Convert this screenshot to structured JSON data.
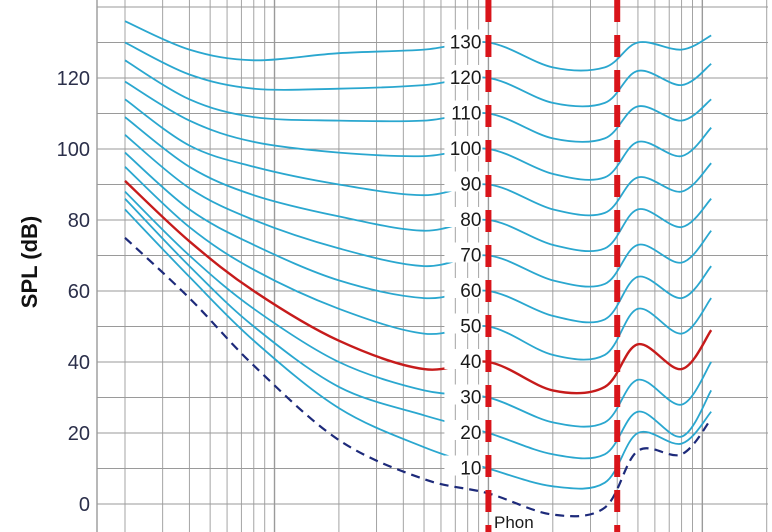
{
  "chart_data": {
    "type": "line",
    "title": "",
    "xlabel": "",
    "ylabel": "SPL (dB)",
    "x_scale": "log",
    "x_unit": "Hz",
    "xlim": [
      20,
      16000
    ],
    "ylim": [
      0,
      140
    ],
    "y_ticks": [
      "0",
      "20",
      "40",
      "60",
      "80",
      "100",
      "120"
    ],
    "grid": true,
    "contour_unit_label": "Phon",
    "colors": {
      "contour": "#2aa7cf",
      "highlight": "#c61b1b",
      "threshold": "#1d2a7a",
      "marker": "#d9141a",
      "grid": "#9a9a9a"
    },
    "markers": [
      {
        "label": "",
        "x": 1000
      },
      {
        "label": "",
        "x": 4000
      }
    ],
    "threshold": {
      "name": "",
      "x": [
        20,
        40,
        80,
        200,
        500,
        1000,
        2000,
        3500,
        5000,
        8000,
        11000
      ],
      "y": [
        75,
        58,
        39,
        18,
        7,
        3,
        -3,
        -1,
        15,
        14,
        24
      ]
    },
    "series": [
      {
        "name": "10",
        "label": "10",
        "highlight": false,
        "x": [
          20,
          40,
          80,
          200,
          500,
          1000,
          2000,
          3500,
          5000,
          8000,
          11000
        ],
        "y": [
          83,
          64,
          46,
          27,
          16,
          10,
          5,
          6,
          20,
          17,
          26
        ]
      },
      {
        "name": "20",
        "label": "20",
        "highlight": false,
        "x": [
          20,
          40,
          80,
          200,
          500,
          1000,
          2000,
          3500,
          5000,
          8000,
          11000
        ],
        "y": [
          86,
          67,
          50,
          33,
          25,
          20,
          14,
          14,
          26,
          19,
          32
        ]
      },
      {
        "name": "30",
        "label": "30",
        "highlight": false,
        "x": [
          20,
          40,
          80,
          200,
          500,
          1000,
          2000,
          3500,
          5000,
          8000,
          11000
        ],
        "y": [
          88,
          70,
          55,
          40,
          32,
          30,
          23,
          23,
          35,
          28,
          40
        ]
      },
      {
        "name": "40",
        "label": "40",
        "highlight": true,
        "x": [
          20,
          40,
          80,
          200,
          500,
          1000,
          2000,
          3500,
          5000,
          8000,
          11000
        ],
        "y": [
          91,
          74,
          60,
          46,
          38,
          40,
          32,
          33,
          45,
          38,
          49
        ]
      },
      {
        "name": "50",
        "label": "50",
        "highlight": false,
        "x": [
          20,
          40,
          80,
          200,
          500,
          1000,
          2000,
          3500,
          5000,
          8000,
          11000
        ],
        "y": [
          95,
          78,
          66,
          55,
          48,
          50,
          42,
          42,
          55,
          48,
          58
        ]
      },
      {
        "name": "60",
        "label": "60",
        "highlight": false,
        "x": [
          20,
          40,
          80,
          200,
          500,
          1000,
          2000,
          3500,
          5000,
          8000,
          11000
        ],
        "y": [
          99,
          83,
          73,
          63,
          58,
          60,
          53,
          52,
          64,
          58,
          67
        ]
      },
      {
        "name": "70",
        "label": "70",
        "highlight": false,
        "x": [
          20,
          40,
          80,
          200,
          500,
          1000,
          2000,
          3500,
          5000,
          8000,
          11000
        ],
        "y": [
          104,
          89,
          80,
          72,
          67,
          70,
          63,
          62,
          73,
          68,
          77
        ]
      },
      {
        "name": "80",
        "label": "80",
        "highlight": false,
        "x": [
          20,
          40,
          80,
          200,
          500,
          1000,
          2000,
          3500,
          5000,
          8000,
          11000
        ],
        "y": [
          109,
          95,
          87,
          81,
          77,
          80,
          73,
          72,
          83,
          78,
          86
        ]
      },
      {
        "name": "90",
        "label": "90",
        "highlight": false,
        "x": [
          20,
          40,
          80,
          200,
          500,
          1000,
          2000,
          3500,
          5000,
          8000,
          11000
        ],
        "y": [
          114,
          101,
          95,
          90,
          87,
          90,
          83,
          82,
          92,
          88,
          96
        ]
      },
      {
        "name": "100",
        "label": "100",
        "highlight": false,
        "x": [
          20,
          40,
          80,
          200,
          500,
          1000,
          2000,
          3500,
          5000,
          8000,
          11000
        ],
        "y": [
          119,
          108,
          102,
          99,
          98,
          100,
          93,
          92,
          102,
          98,
          106
        ]
      },
      {
        "name": "110",
        "label": "110",
        "highlight": false,
        "x": [
          20,
          40,
          80,
          200,
          500,
          1000,
          2000,
          3500,
          5000,
          8000,
          11000
        ],
        "y": [
          125,
          114,
          109,
          108,
          108,
          110,
          103,
          103,
          112,
          108,
          114
        ]
      },
      {
        "name": "120",
        "label": "120",
        "highlight": false,
        "x": [
          20,
          40,
          80,
          200,
          500,
          1000,
          2000,
          3500,
          5000,
          8000,
          11000
        ],
        "y": [
          130,
          121,
          117,
          117,
          118,
          120,
          113,
          113,
          122,
          118,
          124
        ]
      },
      {
        "name": "130",
        "label": "130",
        "highlight": false,
        "x": [
          20,
          40,
          80,
          200,
          500,
          1000,
          2000,
          3500,
          5000,
          8000,
          11000
        ],
        "y": [
          136,
          128,
          125,
          127,
          128,
          130,
          123,
          123,
          130,
          128,
          132
        ]
      }
    ]
  }
}
